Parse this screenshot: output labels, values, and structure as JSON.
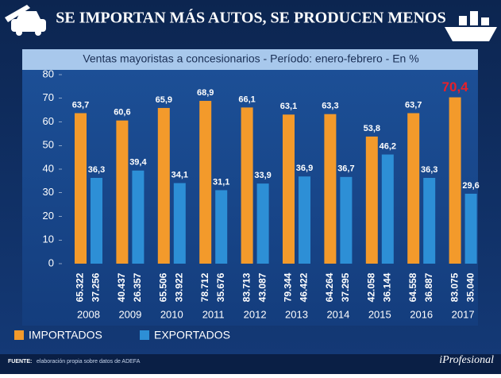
{
  "chart_data": {
    "type": "bar",
    "title": "SE IMPORTAN MÁS AUTOS, SE PRODUCEN MENOS",
    "subtitle": "Ventas mayoristas a concesionarios - Período: enero-febrero - En %",
    "categories": [
      "2008",
      "2009",
      "2010",
      "2011",
      "2012",
      "2013",
      "2014",
      "2015",
      "2016",
      "2017"
    ],
    "series": [
      {
        "name": "IMPORTADOS",
        "color": "#f39a2b",
        "values": [
          63.7,
          60.6,
          65.9,
          68.9,
          66.1,
          63.1,
          63.3,
          53.8,
          63.7,
          70.4
        ],
        "value_labels": [
          "63,7",
          "60,6",
          "65,9",
          "68,9",
          "66,1",
          "63,1",
          "63,3",
          "53,8",
          "63,7",
          "70,4"
        ],
        "unit_labels": [
          "65.322",
          "40.437",
          "65.506",
          "78.712",
          "83.713",
          "79.344",
          "64.264",
          "42.058",
          "64.558",
          "83.075"
        ]
      },
      {
        "name": "EXPORTADOS",
        "color": "#2d8fd6",
        "values": [
          36.3,
          39.4,
          34.1,
          31.1,
          33.9,
          36.9,
          36.7,
          46.2,
          36.3,
          29.6
        ],
        "value_labels": [
          "36,3",
          "39,4",
          "34,1",
          "31,1",
          "33,9",
          "36,9",
          "36,7",
          "46,2",
          "36,3",
          "29,6"
        ],
        "unit_labels": [
          "37.256",
          "26.357",
          "33.922",
          "35.676",
          "43.087",
          "46.422",
          "37.295",
          "36.144",
          "36.887",
          "35.040"
        ]
      }
    ],
    "highlight": {
      "series": 0,
      "index": 9,
      "color": "#e8202a"
    },
    "ylim": [
      0,
      80
    ],
    "yticks": [
      0,
      10,
      20,
      30,
      40,
      50,
      60,
      70,
      80
    ],
    "source_label": "FUENTE:",
    "source": "elaboración propia sobre datos de ADEFA",
    "brand": "iProfesional"
  }
}
